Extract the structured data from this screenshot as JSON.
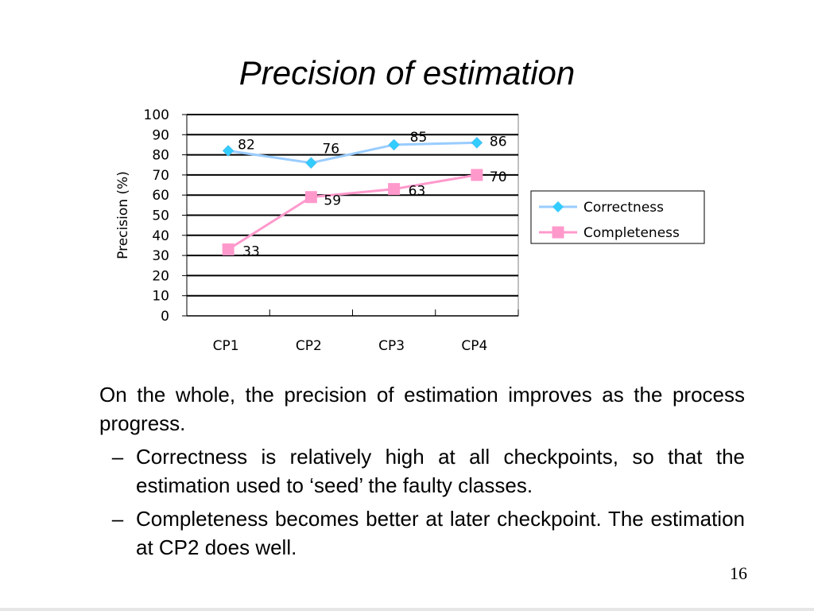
{
  "slide": {
    "title": "Precision of estimation",
    "page_number": "16"
  },
  "chart_data": {
    "type": "line",
    "categories": [
      "CP1",
      "CP2",
      "CP3",
      "CP4"
    ],
    "series": [
      {
        "name": "Correctness",
        "values": [
          82,
          76,
          85,
          86
        ],
        "color": "#99ccff",
        "marker": "diamond",
        "marker_color": "#33ccff"
      },
      {
        "name": "Completeness",
        "values": [
          33,
          59,
          63,
          70
        ],
        "color": "#ff99cc",
        "marker": "square",
        "marker_color": "#ff99cc"
      }
    ],
    "ylabel": "Precision (%)",
    "ylim": [
      0,
      100
    ],
    "yticks": [
      0,
      10,
      20,
      30,
      40,
      50,
      60,
      70,
      80,
      90,
      100
    ],
    "grid": true,
    "legend": "right"
  },
  "body": {
    "intro": "On the whole, the precision of estimation improves as the process progress.",
    "bullets": [
      "Correctness is relatively high at all checkpoints, so that the estimation used to ‘seed’ the faulty classes.",
      "Completeness becomes better at later checkpoint. The estimation at CP2 does well."
    ],
    "bullet_marker": "–"
  }
}
